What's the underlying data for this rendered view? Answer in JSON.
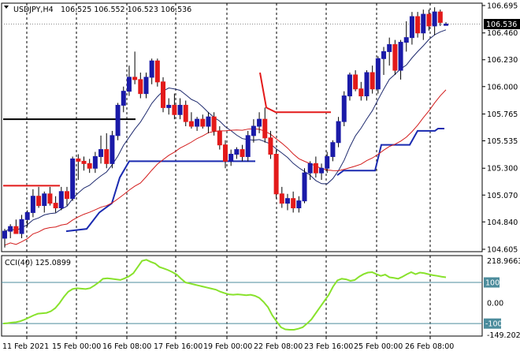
{
  "header": {
    "symbol_tf": "USDJPY,H4",
    "ohlc": "106.525 106.552 106.523 106.536"
  },
  "indicator": {
    "label": "CCI(40) 125.0899",
    "high_label": "218.9663",
    "low_label": "-149.2024",
    "levels": [
      "100",
      "0.00",
      "-100"
    ]
  },
  "price_axis": {
    "ticks": [
      "106.695",
      "106.460",
      "106.230",
      "106.000",
      "105.765",
      "105.535",
      "105.300",
      "105.070",
      "104.840",
      "104.605"
    ],
    "current": "106.536"
  },
  "time_axis": {
    "labels": [
      "11 Feb 2021",
      "15 Feb 00:00",
      "16 Feb 08:00",
      "17 Feb 16:00",
      "19 Feb 00:00",
      "22 Feb 08:00",
      "23 Feb 16:00",
      "25 Feb 00:00",
      "26 Feb 08:00"
    ]
  },
  "colors": {
    "bull": "#1a1aa8",
    "bear": "#e31a1a",
    "ma_fast": "#1e2a6e",
    "ma_slow": "#d31c1c",
    "cci": "#88e22c",
    "support": "#1a2ab0",
    "resistance": "#e31a1a",
    "level_black": "#000000",
    "cci_level": "#4c8c9c"
  },
  "chart_data": {
    "type": "candlestick",
    "symbol": "USDJPY",
    "timeframe": "H4",
    "ylim": [
      104.605,
      106.695
    ],
    "candles": [
      [
        104.7,
        104.78,
        104.62,
        104.76
      ],
      [
        104.76,
        104.82,
        104.7,
        104.8
      ],
      [
        104.8,
        104.86,
        104.74,
        104.74
      ],
      [
        104.74,
        104.9,
        104.7,
        104.86
      ],
      [
        104.86,
        104.94,
        104.8,
        104.92
      ],
      [
        104.92,
        105.12,
        104.88,
        105.06
      ],
      [
        105.06,
        105.14,
        104.96,
        104.98
      ],
      [
        104.98,
        105.1,
        104.92,
        105.08
      ],
      [
        105.08,
        105.14,
        104.98,
        105.0
      ],
      [
        105.0,
        105.06,
        104.92,
        104.96
      ],
      [
        104.96,
        105.14,
        104.94,
        105.1
      ],
      [
        105.1,
        105.14,
        104.98,
        105.04
      ],
      [
        105.04,
        105.4,
        105.02,
        105.38
      ],
      [
        105.38,
        105.42,
        105.2,
        105.36
      ],
      [
        105.36,
        105.4,
        105.28,
        105.34
      ],
      [
        105.34,
        105.38,
        105.26,
        105.3
      ],
      [
        105.3,
        105.44,
        105.26,
        105.4
      ],
      [
        105.4,
        105.58,
        105.34,
        105.46
      ],
      [
        105.46,
        105.6,
        105.3,
        105.34
      ],
      [
        105.34,
        105.62,
        105.3,
        105.58
      ],
      [
        105.58,
        105.86,
        105.54,
        105.84
      ],
      [
        105.84,
        106.0,
        105.78,
        105.96
      ],
      [
        105.96,
        106.18,
        105.92,
        106.08
      ],
      [
        106.08,
        106.3,
        106.02,
        106.06
      ],
      [
        106.06,
        106.12,
        105.9,
        105.94
      ],
      [
        105.94,
        106.12,
        105.9,
        106.08
      ],
      [
        106.08,
        106.24,
        106.02,
        106.22
      ],
      [
        106.22,
        106.24,
        106.0,
        106.04
      ],
      [
        106.04,
        106.08,
        105.78,
        105.82
      ],
      [
        105.82,
        105.9,
        105.76,
        105.84
      ],
      [
        105.84,
        105.94,
        105.72,
        105.76
      ],
      [
        105.76,
        105.9,
        105.72,
        105.84
      ],
      [
        105.84,
        105.88,
        105.66,
        105.7
      ],
      [
        105.7,
        105.78,
        105.64,
        105.66
      ],
      [
        105.66,
        105.74,
        105.62,
        105.72
      ],
      [
        105.72,
        105.76,
        105.64,
        105.66
      ],
      [
        105.66,
        105.78,
        105.6,
        105.74
      ],
      [
        105.74,
        105.78,
        105.58,
        105.62
      ],
      [
        105.62,
        105.66,
        105.46,
        105.5
      ],
      [
        105.5,
        105.54,
        105.3,
        105.36
      ],
      [
        105.36,
        105.46,
        105.32,
        105.42
      ],
      [
        105.42,
        105.48,
        105.38,
        105.46
      ],
      [
        105.46,
        105.5,
        105.36,
        105.4
      ],
      [
        105.4,
        105.62,
        105.36,
        105.58
      ],
      [
        105.58,
        105.72,
        105.52,
        105.66
      ],
      [
        105.66,
        105.78,
        105.6,
        105.72
      ],
      [
        105.72,
        105.82,
        105.52,
        105.56
      ],
      [
        105.56,
        105.62,
        105.38,
        105.42
      ],
      [
        105.42,
        105.46,
        105.04,
        105.08
      ],
      [
        105.08,
        105.14,
        104.96,
        105.0
      ],
      [
        105.0,
        105.08,
        104.94,
        105.04
      ],
      [
        105.04,
        105.1,
        104.92,
        104.96
      ],
      [
        104.96,
        105.06,
        104.92,
        105.02
      ],
      [
        105.02,
        105.3,
        105.0,
        105.26
      ],
      [
        105.26,
        105.36,
        105.2,
        105.34
      ],
      [
        105.34,
        105.4,
        105.22,
        105.26
      ],
      [
        105.26,
        105.34,
        105.2,
        105.3
      ],
      [
        105.3,
        105.44,
        105.26,
        105.4
      ],
      [
        105.4,
        105.54,
        105.36,
        105.52
      ],
      [
        105.52,
        105.74,
        105.48,
        105.7
      ],
      [
        105.7,
        105.96,
        105.66,
        105.92
      ],
      [
        105.92,
        106.12,
        105.88,
        106.1
      ],
      [
        106.1,
        106.14,
        105.96,
        105.98
      ],
      [
        105.98,
        106.04,
        105.88,
        105.92
      ],
      [
        105.92,
        106.14,
        105.88,
        106.12
      ],
      [
        106.12,
        106.18,
        105.94,
        105.98
      ],
      [
        105.98,
        106.26,
        105.94,
        106.24
      ],
      [
        106.24,
        106.34,
        106.1,
        106.3
      ],
      [
        106.3,
        106.42,
        106.18,
        106.36
      ],
      [
        106.36,
        106.4,
        106.1,
        106.14
      ],
      [
        106.14,
        106.4,
        106.06,
        106.38
      ],
      [
        106.38,
        106.56,
        106.3,
        106.42
      ],
      [
        106.42,
        106.64,
        106.36,
        106.6
      ],
      [
        106.6,
        106.64,
        106.42,
        106.46
      ],
      [
        106.46,
        106.66,
        106.4,
        106.62
      ],
      [
        106.62,
        106.66,
        106.48,
        106.52
      ],
      [
        106.52,
        106.68,
        106.44,
        106.64
      ],
      [
        106.64,
        106.66,
        106.52,
        106.55
      ],
      [
        106.525,
        106.552,
        106.523,
        106.536
      ]
    ],
    "cci": [
      -100,
      -98,
      -95,
      -93,
      -88,
      -80,
      -70,
      -60,
      -52,
      -50,
      -48,
      -40,
      -25,
      0,
      30,
      55,
      68,
      72,
      70,
      68,
      72,
      85,
      100,
      118,
      120,
      118,
      115,
      112,
      120,
      130,
      145,
      175,
      205,
      210,
      200,
      192,
      175,
      168,
      160,
      150,
      138,
      118,
      100,
      95,
      90,
      85,
      80,
      75,
      70,
      65,
      55,
      48,
      42,
      40,
      42,
      40,
      38,
      40,
      35,
      25,
      5,
      -20,
      -60,
      -90,
      -118,
      -128,
      -130,
      -130,
      -125,
      -118,
      -100,
      -80,
      -50,
      -20,
      10,
      40,
      80,
      110,
      118,
      115,
      108,
      112,
      128,
      140,
      148,
      150,
      140,
      132,
      138,
      125,
      122,
      118,
      128,
      140,
      150,
      140,
      148,
      145,
      140,
      135,
      132,
      128,
      125.09
    ],
    "levels": {
      "red_resist_left": 105.15,
      "black_level": 105.72,
      "blue_support_mid": 105.36,
      "red_resist_right": 105.78
    }
  }
}
